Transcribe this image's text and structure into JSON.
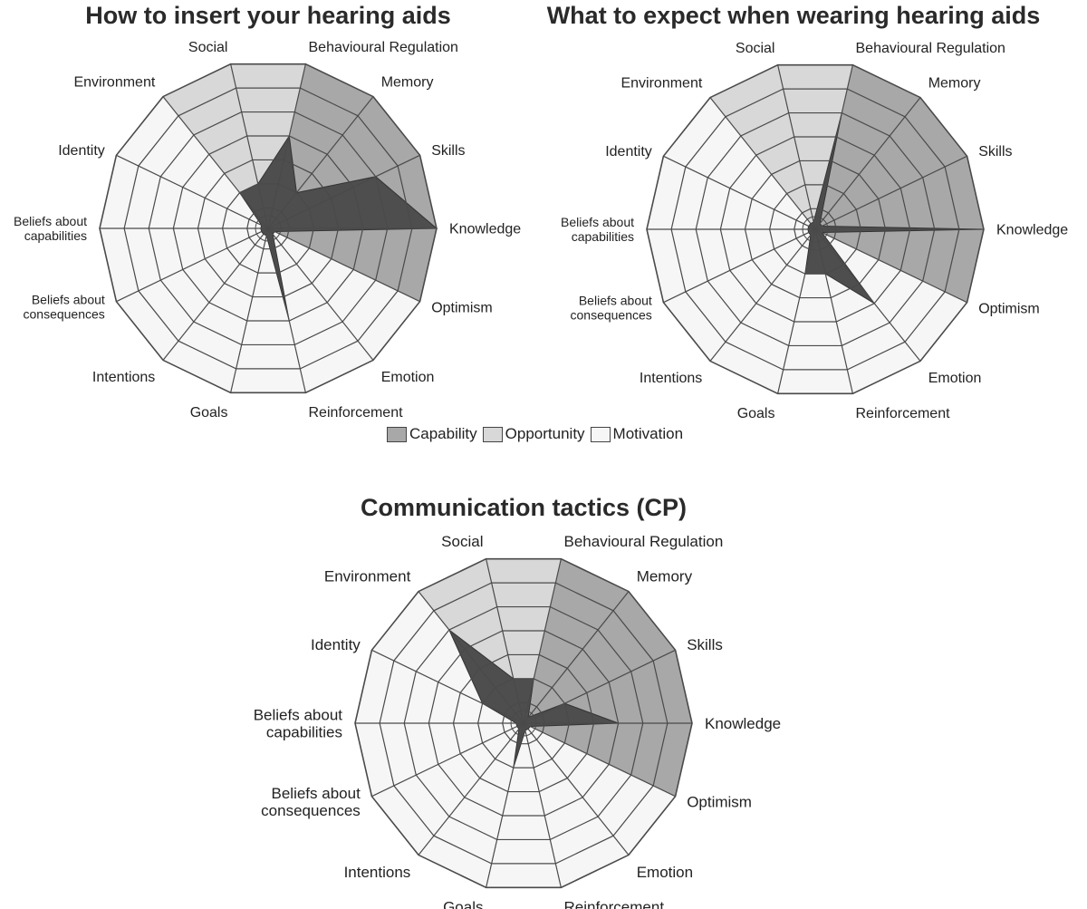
{
  "legend": [
    {
      "label": "Capability",
      "color": "#a8a8a8"
    },
    {
      "label": "Opportunity",
      "color": "#d8d8d8"
    },
    {
      "label": "Motivation",
      "color": "#f6f6f6"
    }
  ],
  "colors": {
    "capability": "#a8a8a8",
    "opportunity": "#d8d8d8",
    "motivation": "#f6f6f6",
    "data_fill": "#4e4e4e",
    "grid": "#4a4a4a"
  },
  "chart_data": [
    {
      "type": "radar",
      "title": "How to insert your hearing aids",
      "axes": [
        "Knowledge",
        "Skills",
        "Memory",
        "Behavioural Regulation",
        "Social",
        "Environment",
        "Identity",
        "Beliefs about capabilities",
        "Beliefs about consequences",
        "Intentions",
        "Goals",
        "Reinforcement",
        "Emotion",
        "Optimism"
      ],
      "domains": [
        "Capability",
        "Capability",
        "Capability",
        "Capability",
        "Opportunity",
        "Opportunity",
        "Motivation",
        "Motivation",
        "Motivation",
        "Motivation",
        "Motivation",
        "Motivation",
        "Motivation",
        "Motivation"
      ],
      "ring_count": 6,
      "rlim": [
        0,
        6
      ],
      "values": [
        6,
        4,
        1,
        3,
        1,
        1,
        0,
        0,
        0,
        0,
        0,
        3,
        0,
        0
      ]
    },
    {
      "type": "radar",
      "title": "What to expect when wearing hearing aids",
      "axes": [
        "Knowledge",
        "Skills",
        "Memory",
        "Behavioural Regulation",
        "Social",
        "Environment",
        "Identity",
        "Beliefs about capabilities",
        "Beliefs about consequences",
        "Intentions",
        "Goals",
        "Reinforcement",
        "Emotion",
        "Optimism"
      ],
      "domains": [
        "Capability",
        "Capability",
        "Capability",
        "Capability",
        "Opportunity",
        "Opportunity",
        "Motivation",
        "Motivation",
        "Motivation",
        "Motivation",
        "Motivation",
        "Motivation",
        "Motivation",
        "Motivation"
      ],
      "ring_count": 6,
      "rlim": [
        0,
        6
      ],
      "values": [
        6,
        0,
        0,
        4,
        0,
        0,
        0,
        0,
        0,
        0,
        1,
        1,
        3,
        0
      ]
    },
    {
      "type": "radar",
      "title": "Communication tactics (CP)",
      "axes": [
        "Knowledge",
        "Skills",
        "Memory",
        "Behavioural Regulation",
        "Social",
        "Environment",
        "Identity",
        "Beliefs about capabilities",
        "Beliefs about consequences",
        "Intentions",
        "Goals",
        "Reinforcement",
        "Emotion",
        "Optimism"
      ],
      "domains": [
        "Capability",
        "Capability",
        "Capability",
        "Capability",
        "Opportunity",
        "Opportunity",
        "Motivation",
        "Motivation",
        "Motivation",
        "Motivation",
        "Motivation",
        "Motivation",
        "Motivation",
        "Motivation"
      ],
      "ring_count": 6,
      "rlim": [
        0,
        6
      ],
      "values": [
        3,
        1,
        0,
        1,
        1,
        4,
        1,
        0,
        0,
        0,
        1,
        0,
        0,
        0
      ]
    }
  ]
}
